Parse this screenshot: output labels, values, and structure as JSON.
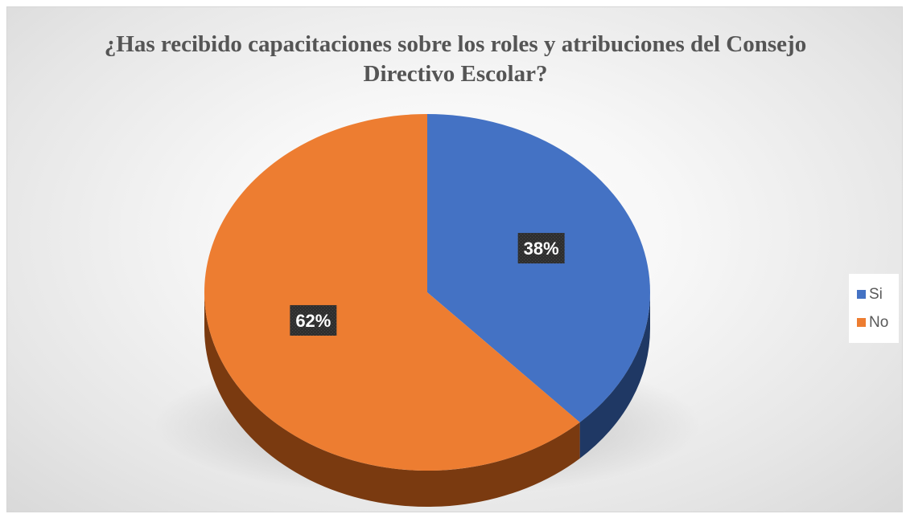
{
  "chart_data": {
    "type": "pie",
    "title": "¿Has recibido capacitaciones sobre los roles y atribuciones del Consejo Directivo Escolar?",
    "categories": [
      "Si",
      "No"
    ],
    "values": [
      38,
      62
    ],
    "data_labels": [
      "38%",
      "62%"
    ],
    "colors": [
      "#4472C4",
      "#ED7D31"
    ],
    "side_colors": [
      "#1F3864",
      "#7A3A10"
    ],
    "style": "3d",
    "legend_position": "right"
  }
}
